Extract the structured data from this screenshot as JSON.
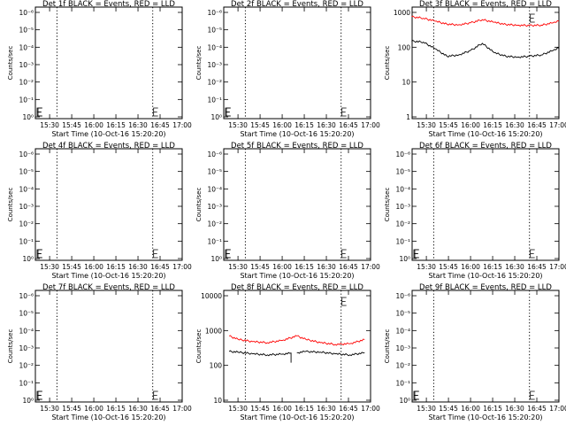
{
  "figure": {
    "background": "#ffffff",
    "colors": {
      "events": "#000000",
      "lld": "#ff0000"
    }
  },
  "chart_data": [
    {
      "type": "line",
      "title": "Det 1f BLACK = Events, RED = LLD",
      "xlabel": "Start Time (10-Oct-16 15:20:20)",
      "ylabel": "Counts/sec",
      "x_ticks": [
        "15:30",
        "15:45",
        "16:00",
        "16:15",
        "16:30",
        "16:45",
        "17:00"
      ],
      "x_range": [
        "15:20:20",
        "17:00:00"
      ],
      "y_ticks": [
        "10⁰",
        "10⁻¹",
        "10⁻²",
        "10⁻³",
        "10⁻⁴",
        "10⁻⁵",
        "10⁻⁶"
      ],
      "yscale": "log",
      "markers": [
        "15:35:00",
        "16:40:00"
      ],
      "series": []
    },
    {
      "type": "line",
      "title": "Det 2f BLACK = Events, RED = LLD",
      "xlabel": "Start Time (10-Oct-16 15:20:20)",
      "ylabel": "Counts/sec",
      "x_ticks": [
        "15:30",
        "15:45",
        "16:00",
        "16:15",
        "16:30",
        "16:45",
        "17:00"
      ],
      "x_range": [
        "15:20:20",
        "17:00:00"
      ],
      "y_ticks": [
        "10⁰",
        "10⁻¹",
        "10⁻²",
        "10⁻³",
        "10⁻⁴",
        "10⁻⁵",
        "10⁻⁶"
      ],
      "yscale": "log",
      "markers": [
        "15:35:00",
        "16:40:00"
      ],
      "series": []
    },
    {
      "type": "line",
      "title": "Det 3f BLACK = Events, RED = LLD",
      "xlabel": "Start Time (10-Oct-16 15:20:20)",
      "ylabel": "Counts/sec",
      "x_ticks": [
        "15:30",
        "15:45",
        "16:00",
        "16:15",
        "16:30",
        "16:45",
        "17:00"
      ],
      "x_range": [
        "15:20:20",
        "17:00:00"
      ],
      "y_ticks": [
        "1",
        "10",
        "100",
        "1000"
      ],
      "yscale": "log",
      "ylim": [
        1,
        1000
      ],
      "markers": [
        "15:35:00",
        "16:40:00"
      ],
      "series": [
        {
          "color": "#ff0000",
          "x": [
            "15:20",
            "15:28",
            "15:36",
            "15:44",
            "15:52",
            "16:00",
            "16:08",
            "16:16",
            "16:24",
            "16:32",
            "16:40",
            "16:48",
            "16:56",
            "17:00"
          ],
          "y": [
            750,
            680,
            560,
            460,
            440,
            500,
            620,
            520,
            450,
            430,
            420,
            430,
            500,
            560
          ]
        },
        {
          "color": "#000000",
          "x": [
            "15:20",
            "15:28",
            "15:36",
            "15:44",
            "15:52",
            "16:00",
            "16:08",
            "16:16",
            "16:24",
            "16:32",
            "16:40",
            "16:48",
            "16:56",
            "17:00"
          ],
          "y": [
            150,
            140,
            90,
            55,
            60,
            80,
            130,
            70,
            55,
            52,
            55,
            60,
            80,
            95
          ]
        }
      ]
    },
    {
      "type": "line",
      "title": "Det 4f BLACK = Events, RED = LLD",
      "xlabel": "Start Time (10-Oct-16 15:20:20)",
      "ylabel": "Counts/sec",
      "x_ticks": [
        "15:30",
        "15:45",
        "16:00",
        "16:15",
        "16:30",
        "16:45",
        "17:00"
      ],
      "x_range": [
        "15:20:20",
        "17:00:00"
      ],
      "y_ticks": [
        "10⁰",
        "10⁻¹",
        "10⁻²",
        "10⁻³",
        "10⁻⁴",
        "10⁻⁵",
        "10⁻⁶"
      ],
      "yscale": "log",
      "markers": [
        "15:35:00",
        "16:40:00"
      ],
      "series": []
    },
    {
      "type": "line",
      "title": "Det 5f BLACK = Events, RED = LLD",
      "xlabel": "Start Time (10-Oct-16 15:20:20)",
      "ylabel": "Counts/sec",
      "x_ticks": [
        "15:30",
        "15:45",
        "16:00",
        "16:15",
        "16:30",
        "16:45",
        "17:00"
      ],
      "x_range": [
        "15:20:20",
        "17:00:00"
      ],
      "y_ticks": [
        "10⁰",
        "10⁻¹",
        "10⁻²",
        "10⁻³",
        "10⁻⁴",
        "10⁻⁵",
        "10⁻⁶"
      ],
      "yscale": "log",
      "markers": [
        "15:35:00",
        "16:40:00"
      ],
      "series": []
    },
    {
      "type": "line",
      "title": "Det 6f BLACK = Events, RED = LLD",
      "xlabel": "Start Time (10-Oct-16 15:20:20)",
      "ylabel": "Counts/sec",
      "x_ticks": [
        "15:30",
        "15:45",
        "16:00",
        "16:15",
        "16:30",
        "16:45",
        "17:00"
      ],
      "x_range": [
        "15:20:20",
        "17:00:00"
      ],
      "y_ticks": [
        "10⁰",
        "10⁻¹",
        "10⁻²",
        "10⁻³",
        "10⁻⁴",
        "10⁻⁵",
        "10⁻⁶"
      ],
      "yscale": "log",
      "markers": [
        "15:35:00",
        "16:40:00"
      ],
      "series": []
    },
    {
      "type": "line",
      "title": "Det 7f BLACK = Events, RED = LLD",
      "xlabel": "Start Time (10-Oct-16 15:20:20)",
      "ylabel": "Counts/sec",
      "x_ticks": [
        "15:30",
        "15:45",
        "16:00",
        "16:15",
        "16:30",
        "16:45",
        "17:00"
      ],
      "x_range": [
        "15:20:20",
        "17:00:00"
      ],
      "y_ticks": [
        "10⁰",
        "10⁻¹",
        "10⁻²",
        "10⁻³",
        "10⁻⁴",
        "10⁻⁵",
        "10⁻⁶"
      ],
      "yscale": "log",
      "markers": [
        "15:35:00",
        "16:40:00"
      ],
      "series": []
    },
    {
      "type": "line",
      "title": "Det 8f BLACK = Events, RED = LLD",
      "xlabel": "Start Time (10-Oct-16 15:20:20)",
      "ylabel": "Counts/sec",
      "x_ticks": [
        "15:30",
        "15:45",
        "16:00",
        "16:15",
        "16:30",
        "16:45",
        "17:00"
      ],
      "x_range": [
        "15:20:20",
        "17:00:00"
      ],
      "y_ticks": [
        "10",
        "100",
        "1000",
        "10000"
      ],
      "yscale": "log",
      "ylim": [
        10,
        10000
      ],
      "markers": [
        "15:35:00",
        "16:40:00"
      ],
      "series": [
        {
          "color": "#ff0000",
          "x": [
            "15:24",
            "15:30",
            "15:40",
            "15:50",
            "16:00",
            "16:10",
            "16:16",
            "16:26",
            "16:36",
            "16:46",
            "16:56"
          ],
          "y": [
            700,
            560,
            480,
            450,
            520,
            700,
            560,
            450,
            400,
            420,
            550
          ]
        },
        {
          "color": "#000000",
          "x": [
            "15:24",
            "15:30",
            "15:40",
            "15:50",
            "16:00",
            "16:06",
            "16:06",
            "16:06",
            "16:10",
            "16:10",
            "16:16",
            "16:26",
            "16:36",
            "16:46",
            "16:56"
          ],
          "y": [
            250,
            240,
            215,
            200,
            210,
            225,
            120,
            225,
            null,
            230,
            250,
            240,
            215,
            200,
            230
          ]
        }
      ]
    },
    {
      "type": "line",
      "title": "Det 9f BLACK = Events, RED = LLD",
      "xlabel": "Start Time (10-Oct-16 15:20:20)",
      "ylabel": "Counts/sec",
      "x_ticks": [
        "15:30",
        "15:45",
        "16:00",
        "16:15",
        "16:30",
        "16:45",
        "17:00"
      ],
      "x_range": [
        "15:20:20",
        "17:00:00"
      ],
      "y_ticks": [
        "10⁰",
        "10⁻¹",
        "10⁻²",
        "10⁻³",
        "10⁻⁴",
        "10⁻⁵",
        "10⁻⁶"
      ],
      "yscale": "log",
      "markers": [
        "15:35:00",
        "16:40:00"
      ],
      "series": []
    }
  ]
}
